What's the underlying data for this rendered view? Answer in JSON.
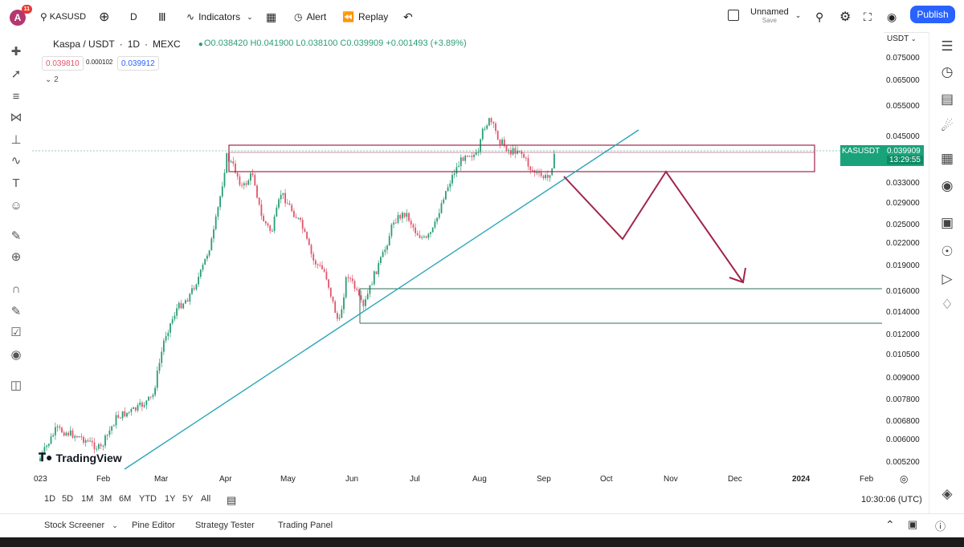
{
  "topbar": {
    "avatar_letter": "A",
    "notif_count": "11",
    "symbol": "KASUSD",
    "interval": "D",
    "indicators": "Indicators",
    "alert": "Alert",
    "replay": "Replay",
    "layout_name": "Unnamed",
    "layout_sub": "Save",
    "publish": "Publish"
  },
  "legend": {
    "title": "Kaspa / USDT",
    "interval": "1D",
    "exchange": "MEXC",
    "ohlc": "O0.038420 H0.041900 L0.038100 C0.039909 +0.001493 (+3.89%)",
    "bid": "0.039810",
    "spread": "0.000102",
    "ask": "0.039912",
    "collapsed": "2"
  },
  "price_axis": {
    "currency": "USDT",
    "labels": [
      "0.075000",
      "0.065000",
      "0.055000",
      "0.045000",
      "0.033000",
      "0.029000",
      "0.025000",
      "0.022000",
      "0.019000",
      "0.016000",
      "0.014000",
      "0.012000",
      "0.010500",
      "0.009000",
      "0.007800",
      "0.006800",
      "0.006000",
      "0.005200"
    ]
  },
  "price_tag": {
    "symbol": "KASUSDT",
    "price": "0.039909",
    "countdown": "13:29:55"
  },
  "time_axis": [
    "023",
    "Feb",
    "Mar",
    "Apr",
    "May",
    "Jun",
    "Jul",
    "Aug",
    "Sep",
    "Oct",
    "Nov",
    "Dec",
    "2024",
    "Feb"
  ],
  "logo": "TradingView",
  "ranges": [
    "1D",
    "5D",
    "1M",
    "3M",
    "6M",
    "YTD",
    "1Y",
    "5Y",
    "All"
  ],
  "clock": "10:30:06 (UTC)",
  "bottom": {
    "screener": "Stock Screener",
    "pine": "Pine Editor",
    "strategy": "Strategy Tester",
    "trading": "Trading Panel"
  },
  "colors": {
    "bull": "#2a9d75",
    "bear": "#e0566b",
    "trendline": "#2aa6b8",
    "zone": "#a0264a",
    "support": "#2f6f5a",
    "accent": "#2962ff"
  }
}
